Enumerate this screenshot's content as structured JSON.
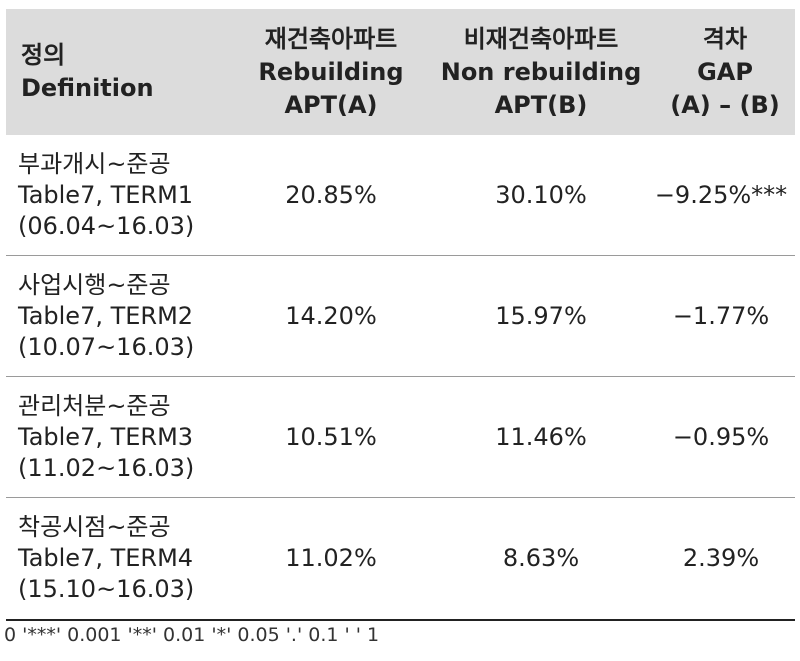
{
  "header": {
    "col0": [
      "정의",
      "Definition"
    ],
    "col1": [
      "재건축아파트",
      "Rebuilding",
      "APT(A)"
    ],
    "col2": [
      "비재건축아파트",
      "Non rebuilding",
      "APT(B)"
    ],
    "col3": [
      "격차",
      "GAP",
      "(A) – (B)"
    ]
  },
  "rows": [
    {
      "def": [
        "부과개시~준공",
        "Table7, TERM1",
        "(06.04~16.03)"
      ],
      "a": "20.85%",
      "b": "30.10%",
      "gap": "−9.25%***"
    },
    {
      "def": [
        "사업시행~준공",
        "Table7, TERM2",
        "(10.07~16.03)"
      ],
      "a": "14.20%",
      "b": "15.97%",
      "gap": "−1.77%"
    },
    {
      "def": [
        "관리처분~준공",
        "Table7, TERM3",
        "(11.02~16.03)"
      ],
      "a": "10.51%",
      "b": "11.46%",
      "gap": "−0.95%"
    },
    {
      "def": [
        "착공시점~준공",
        "Table7, TERM4",
        "(15.10~16.03)"
      ],
      "a": "11.02%",
      "b": "8.63%",
      "gap": "2.39%"
    }
  ],
  "note": "0 '***' 0.001 '**' 0.01 '*' 0.05 '.' 0.1 ' ' 1",
  "colors": {
    "header_bg": "#dcdcdc",
    "rule": "#222222",
    "divider": "#9a9a9a"
  }
}
